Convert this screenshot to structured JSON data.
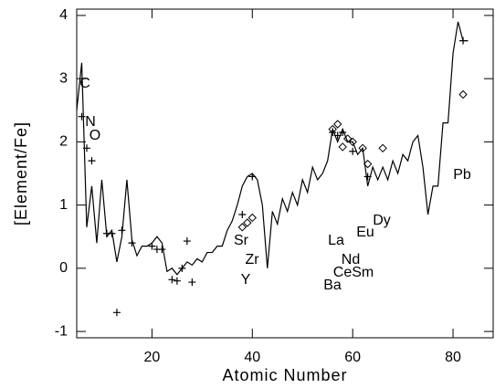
{
  "chart_data": {
    "type": "line",
    "xlabel": "Atomic Number",
    "ylabel": "[Element/Fe]",
    "xlim": [
      5,
      88
    ],
    "xticks": [
      20,
      40,
      60,
      80
    ],
    "ylim": [
      -1.1,
      4.1
    ],
    "yticks": [
      -1,
      0,
      1,
      2,
      3,
      4
    ],
    "series": [
      {
        "marker": "line",
        "color": "#000000",
        "x": [
          5,
          6,
          7,
          8,
          9,
          10,
          11,
          12,
          13,
          14,
          15,
          16,
          17,
          18,
          19,
          20,
          21,
          22,
          23,
          24,
          25,
          26,
          27,
          28,
          29,
          30,
          31,
          32,
          33,
          34,
          35,
          36,
          37,
          38,
          39,
          40,
          41,
          42,
          43,
          44,
          45,
          46,
          47,
          48,
          49,
          50,
          51,
          52,
          53,
          54,
          55,
          56,
          57,
          58,
          59,
          60,
          61,
          62,
          63,
          64,
          65,
          66,
          67,
          68,
          69,
          70,
          71,
          72,
          73,
          74,
          75,
          76,
          77,
          78,
          79,
          80,
          81,
          82,
          83
        ],
        "values": [
          2.5,
          3.25,
          0.65,
          1.3,
          0.4,
          1.4,
          0.5,
          0.6,
          0.1,
          0.5,
          1.4,
          0.45,
          0.2,
          0.35,
          0.35,
          0.4,
          0.5,
          0.4,
          -0.05,
          0.0,
          -0.1,
          0.0,
          0.1,
          0.05,
          0.15,
          0.1,
          0.25,
          0.25,
          0.35,
          0.35,
          0.6,
          0.75,
          1.0,
          1.3,
          1.45,
          1.5,
          1.4,
          1.0,
          0.0,
          0.9,
          0.7,
          1.1,
          0.9,
          1.2,
          1.0,
          1.4,
          1.2,
          1.6,
          1.4,
          1.5,
          1.7,
          2.2,
          2.0,
          2.2,
          2.0,
          2.0,
          1.8,
          1.9,
          1.3,
          1.6,
          1.4,
          1.6,
          1.4,
          1.7,
          1.5,
          1.8,
          1.7,
          2.0,
          2.1,
          1.6,
          0.85,
          1.3,
          1.3,
          2.3,
          2.3,
          3.4,
          3.9,
          3.6,
          3.6
        ]
      },
      {
        "marker": "plus",
        "color": "#000000",
        "x": [
          6,
          7,
          8,
          11,
          12,
          13,
          14,
          16,
          20,
          21,
          22,
          24,
          25,
          26,
          27,
          28,
          38,
          40,
          56,
          57,
          58,
          60,
          63,
          82
        ],
        "values": [
          2.4,
          1.9,
          1.7,
          0.55,
          0.55,
          -0.7,
          0.6,
          0.4,
          0.35,
          0.3,
          0.3,
          -0.18,
          -0.2,
          0.0,
          0.43,
          -0.22,
          0.85,
          1.45,
          2.15,
          2.1,
          2.15,
          1.85,
          1.45,
          3.6
        ]
      },
      {
        "marker": "diamond",
        "color": "#000000",
        "x": [
          38,
          39,
          40,
          56,
          57,
          58,
          59,
          60,
          62,
          63,
          66,
          82
        ],
        "values": [
          0.65,
          0.72,
          0.8,
          2.2,
          2.28,
          1.92,
          2.05,
          2.0,
          1.9,
          1.65,
          1.9,
          2.75
        ]
      }
    ],
    "annotations": [
      "C",
      "N",
      "O",
      "Sr",
      "Zr",
      "Y",
      "La",
      "Nd",
      "Eu",
      "Dy",
      "CeSm",
      "Ba",
      "Pb"
    ]
  }
}
